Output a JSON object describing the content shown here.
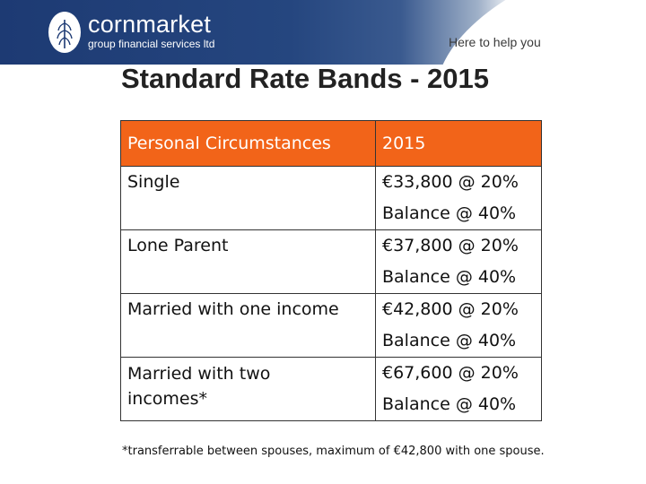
{
  "header": {
    "brand_name": "cornmarket",
    "brand_sub": "group financial services ltd",
    "tagline": "Here to help you",
    "logo": "cornmarket-wheat-logo",
    "band_color": "#1d3a73"
  },
  "slide": {
    "title": "Standard Rate Bands - 2015",
    "accent_color": "#f26419"
  },
  "table": {
    "headers": [
      "Personal Circumstances",
      "2015"
    ],
    "rows": [
      {
        "circumstance": "Single",
        "band": "€33,800 @ 20%",
        "balance": "Balance @ 40%"
      },
      {
        "circumstance": "Lone Parent",
        "band": "€37,800 @ 20%",
        "balance": "Balance @ 40%"
      },
      {
        "circumstance": "Married with one income",
        "band": "€42,800 @ 20%",
        "balance": "Balance @ 40%"
      },
      {
        "circumstance": "Married with two incomes*",
        "band": "€67,600 @ 20%",
        "balance": "Balance @ 40%"
      }
    ]
  },
  "footnote": "*transferrable between spouses, maximum of €42,800 with one spouse."
}
